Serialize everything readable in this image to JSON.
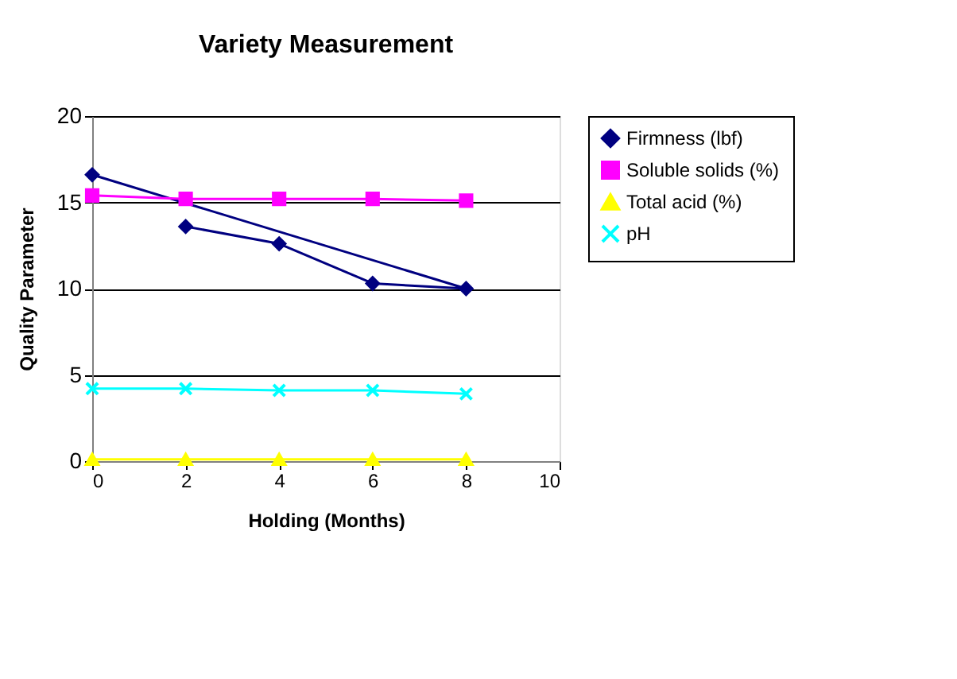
{
  "chart_data": {
    "type": "line",
    "title": "Variety Measurement",
    "xlabel": "Holding (Months)",
    "ylabel": "Quality Parameter",
    "xlim": [
      0,
      10
    ],
    "xticks": [
      0,
      2,
      4,
      6,
      8,
      10
    ],
    "ylim": [
      0,
      20
    ],
    "yticks": [
      0,
      5,
      10,
      15,
      20
    ],
    "grid": "y",
    "legend": "right",
    "series": [
      {
        "name": "Firmness (lbf)",
        "color": "#000080",
        "marker": "diamond",
        "x": [
          2,
          4,
          6,
          8,
          0
        ],
        "values": [
          13.6,
          12.6,
          10.3,
          10.0,
          16.6
        ]
      },
      {
        "name": "Soluble solids (%)",
        "color": "#ff00ff",
        "marker": "square",
        "x": [
          0,
          2,
          4,
          6,
          8
        ],
        "values": [
          15.4,
          15.2,
          15.2,
          15.2,
          15.1
        ]
      },
      {
        "name": "Total acid (%)",
        "color": "#ffff00",
        "marker": "triangle",
        "x": [
          0,
          2,
          4,
          6,
          8
        ],
        "values": [
          0.1,
          0.1,
          0.1,
          0.1,
          0.1
        ]
      },
      {
        "name": "pH",
        "color": "#00ffff",
        "marker": "cross",
        "x": [
          0,
          2,
          4,
          6,
          8
        ],
        "values": [
          4.2,
          4.2,
          4.1,
          4.1,
          3.9
        ]
      }
    ]
  }
}
